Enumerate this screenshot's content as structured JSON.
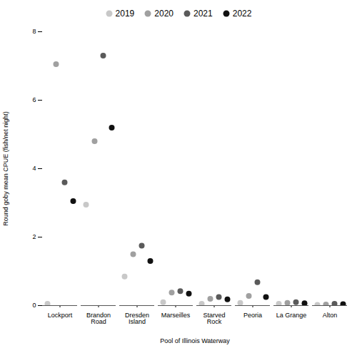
{
  "chart_data": {
    "type": "scatter",
    "xlabel": "Pool of Illinois Waterway",
    "ylabel": "Round goby mean CPUE (fish/net night)",
    "categories": [
      "Lockport",
      "Brandon\nRoad",
      "Dresden\nIsland",
      "Marseilles",
      "Starved\nRock",
      "Peoria",
      "La Grange",
      "Alton"
    ],
    "series": [
      {
        "name": "2019",
        "color": "#c8c8c8",
        "values": [
          0.05,
          2.95,
          0.85,
          0.1,
          0.05,
          0.08,
          0.05,
          0.02
        ]
      },
      {
        "name": "2020",
        "color": "#a0a0a0",
        "values": [
          7.05,
          4.8,
          1.5,
          0.38,
          0.2,
          0.28,
          0.08,
          0.03
        ]
      },
      {
        "name": "2021",
        "color": "#5a5a5a",
        "values": [
          3.6,
          7.3,
          1.75,
          0.42,
          0.25,
          0.68,
          0.1,
          0.05
        ]
      },
      {
        "name": "2022",
        "color": "#111111",
        "values": [
          3.05,
          5.2,
          1.3,
          0.35,
          0.18,
          0.25,
          0.07,
          0.04
        ]
      }
    ],
    "ylim": [
      0,
      8
    ],
    "yticks": [
      0,
      2,
      4,
      6,
      8
    ],
    "grid": false,
    "legend": "top",
    "marker": "circle"
  }
}
